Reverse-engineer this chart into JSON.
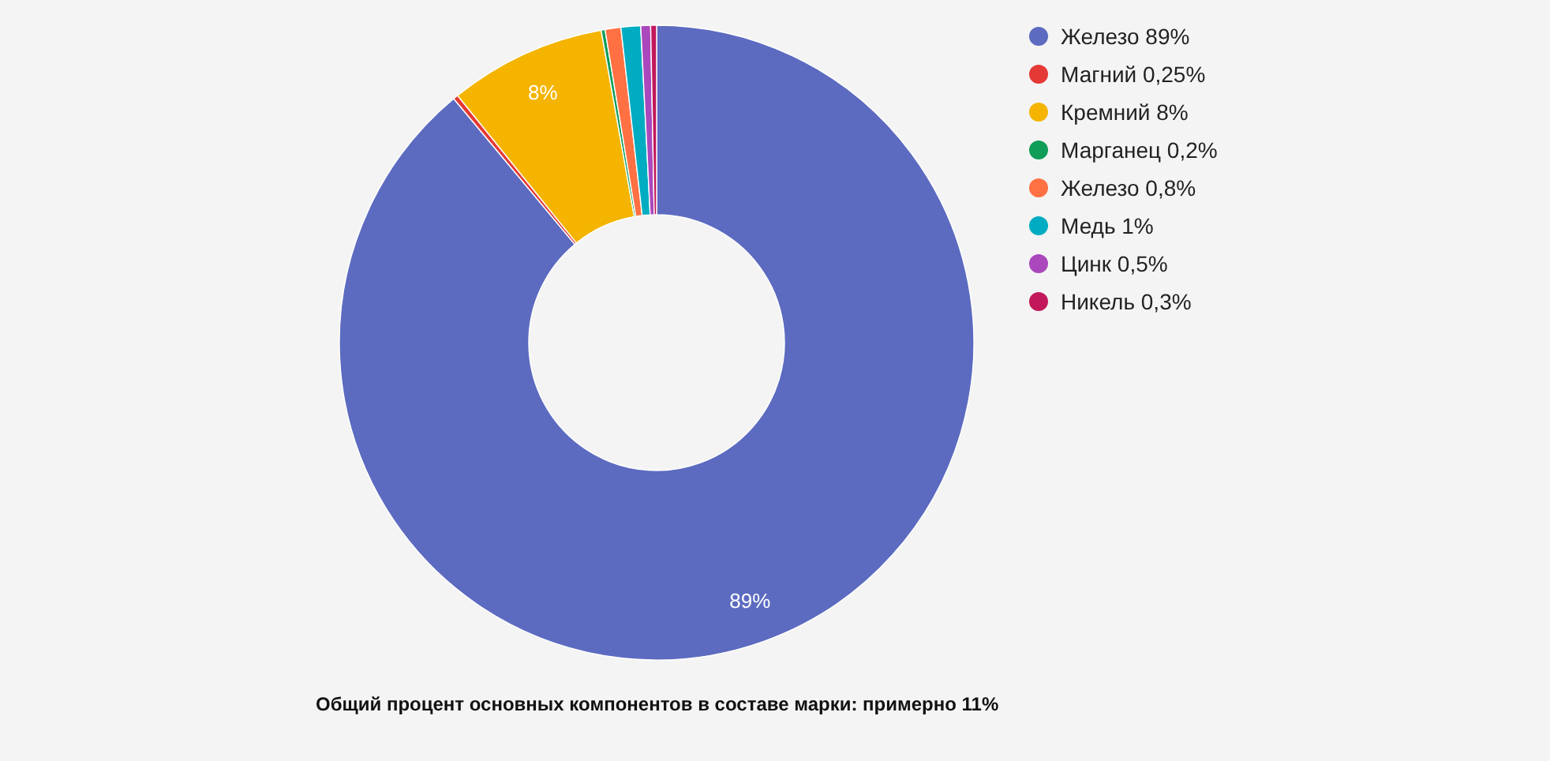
{
  "chart_data": {
    "type": "donut",
    "categories": [
      "Железо 89%",
      "Магний 0,25%",
      "Кремний 8%",
      "Марганец 0,2%",
      "Железо 0,8%",
      "Медь 1%",
      "Цинк 0,5%",
      "Никель 0,3%"
    ],
    "values": [
      89,
      0.25,
      8,
      0.2,
      0.8,
      1,
      0.5,
      0.3
    ],
    "colors": [
      "#5c6bc0",
      "#e53935",
      "#f4b400",
      "#0f9d58",
      "#ff7043",
      "#00acc1",
      "#ab47bc",
      "#c2185b"
    ],
    "value_labels": [
      "89%",
      null,
      "8%",
      null,
      null,
      null,
      null,
      null
    ],
    "legend": "top right",
    "annotations": [
      "Общий процент основных компонентов в составе марки: примерно 11%"
    ]
  }
}
